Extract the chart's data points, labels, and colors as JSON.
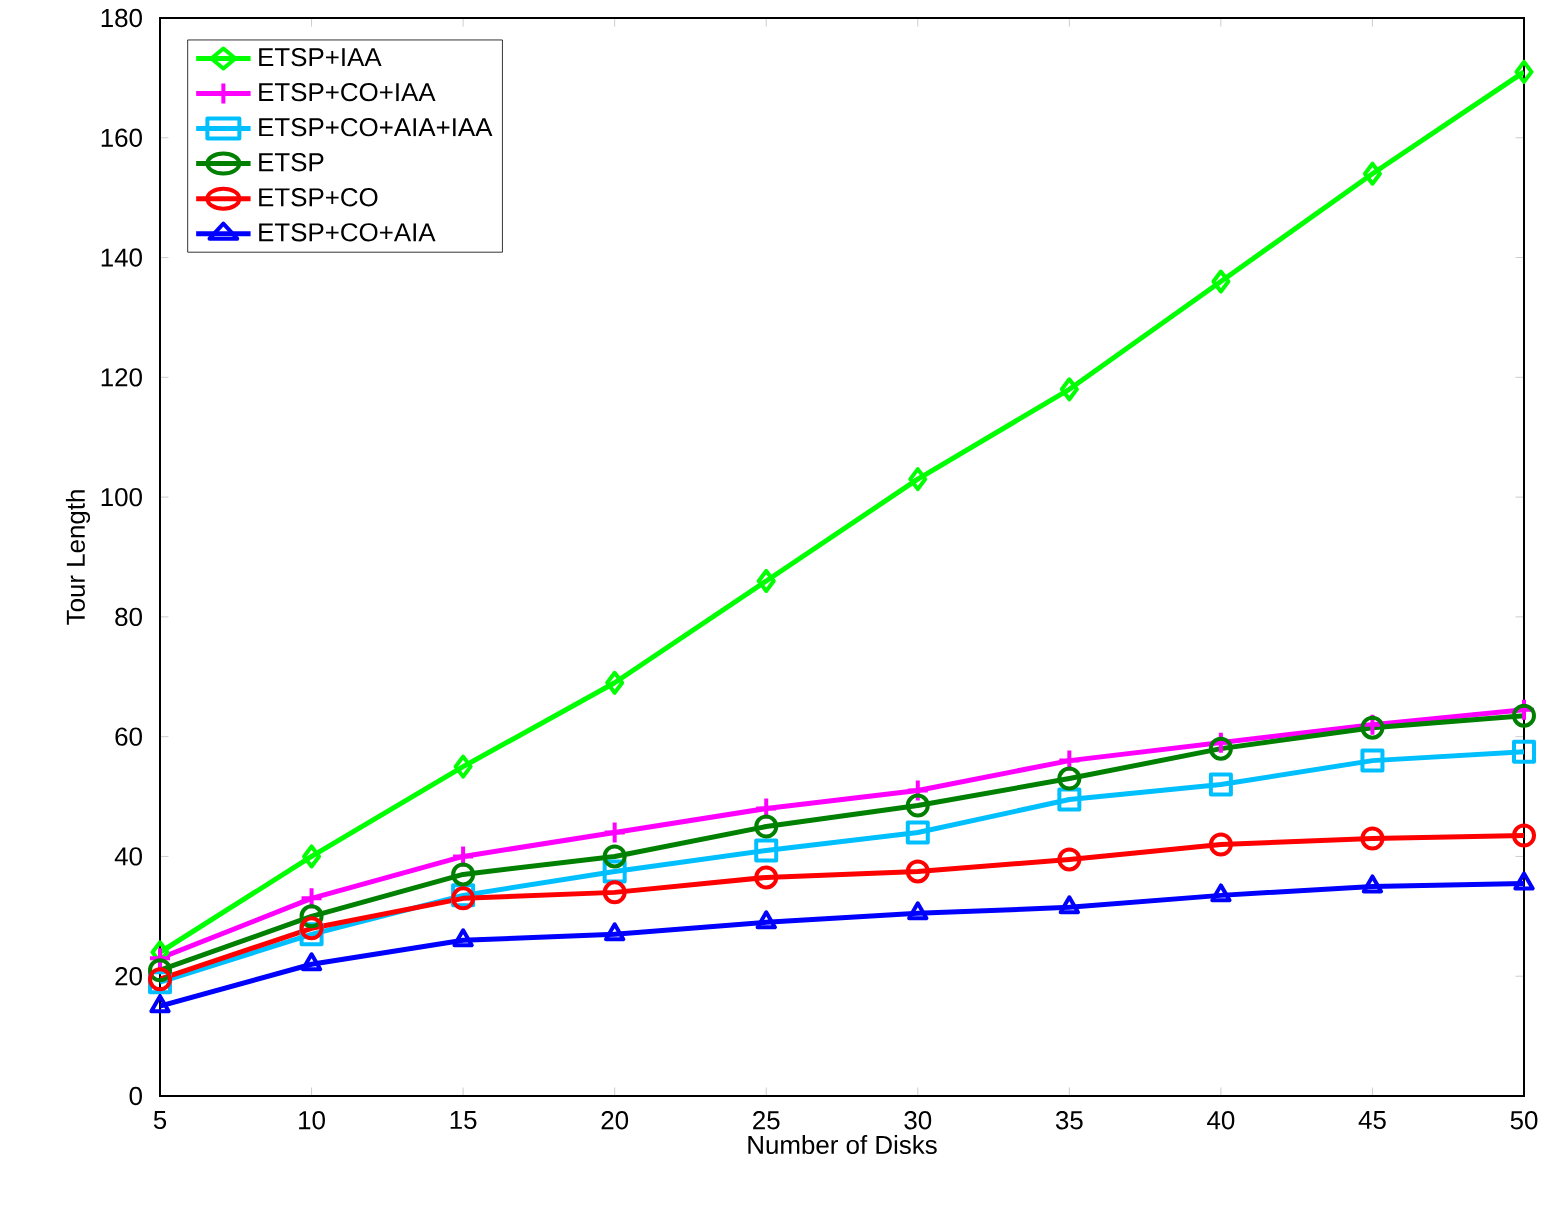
{
  "chart_data": {
    "type": "line",
    "xlabel": "Number of Disks",
    "ylabel": "Tour Length",
    "x": [
      5,
      10,
      15,
      20,
      25,
      30,
      35,
      40,
      45,
      50
    ],
    "xlim": [
      5,
      50
    ],
    "ylim": [
      0,
      180
    ],
    "xticks": [
      5,
      10,
      15,
      20,
      25,
      30,
      35,
      40,
      45,
      50
    ],
    "yticks": [
      0,
      20,
      40,
      60,
      80,
      100,
      120,
      140,
      160,
      180
    ],
    "grid": false,
    "legend": "top left",
    "series": [
      {
        "name": "ETSP+IAA",
        "color": "#00ff00",
        "marker": "diamond",
        "values": [
          24,
          40,
          55,
          69,
          86,
          103,
          118,
          136,
          154,
          171
        ]
      },
      {
        "name": "ETSP+CO+IAA",
        "color": "#ff00ff",
        "marker": "cross",
        "values": [
          23,
          33,
          40,
          44,
          48,
          51,
          56,
          59,
          62,
          64.5
        ]
      },
      {
        "name": "ETSP+CO+AIA+IAA",
        "color": "#00bfff",
        "marker": "square",
        "values": [
          19,
          27,
          33.5,
          37.5,
          41,
          44,
          49.5,
          52,
          56,
          57.5
        ]
      },
      {
        "name": "ETSP",
        "color": "#008000",
        "marker": "circle",
        "values": [
          21,
          30,
          37,
          40,
          45,
          48.5,
          53,
          58,
          61.5,
          63.5
        ]
      },
      {
        "name": "ETSP+CO",
        "color": "#ff0000",
        "marker": "circle",
        "values": [
          19.5,
          28,
          33,
          34,
          36.5,
          37.5,
          39.5,
          42,
          43,
          43.5
        ]
      },
      {
        "name": "ETSP+CO+AIA",
        "color": "#0000ff",
        "marker": "triangle",
        "values": [
          15,
          22,
          26,
          27,
          29,
          30.5,
          31.5,
          33.5,
          35,
          35.5
        ]
      }
    ]
  }
}
